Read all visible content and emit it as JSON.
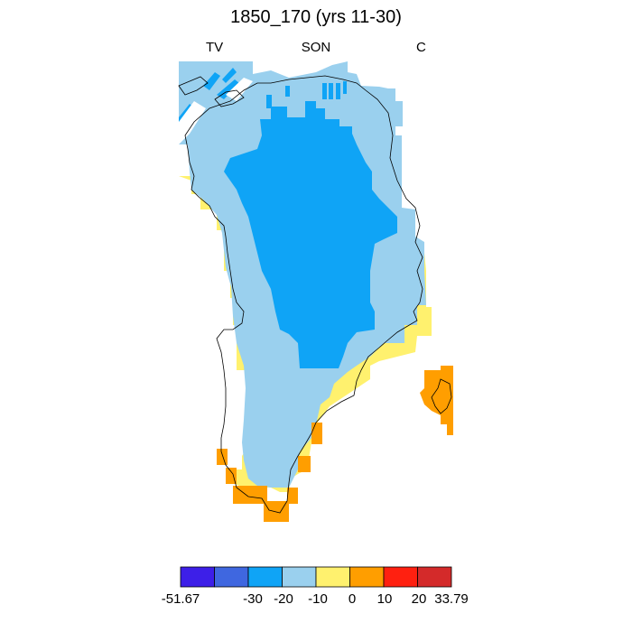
{
  "title": "1850_170 (yrs 11-30)",
  "labels": {
    "left": "TV",
    "center": "SON",
    "right": "C"
  },
  "colorbar": {
    "colors": [
      "#3d1fe8",
      "#3f67e0",
      "#0fa4f6",
      "#9ad0ee",
      "#fff16e",
      "#ff9e00",
      "#ff2010",
      "#d42a2a"
    ],
    "tick_labels": [
      "-51.67",
      "-30",
      "-20",
      "-10",
      "0",
      "10",
      "20",
      "33.79"
    ]
  },
  "map": {
    "region": "Greenland",
    "colors": {
      "dark_blue": "#0fa4f6",
      "light_blue": "#9ad0ee",
      "yellow": "#fff16e",
      "orange": "#ff9e00"
    }
  }
}
